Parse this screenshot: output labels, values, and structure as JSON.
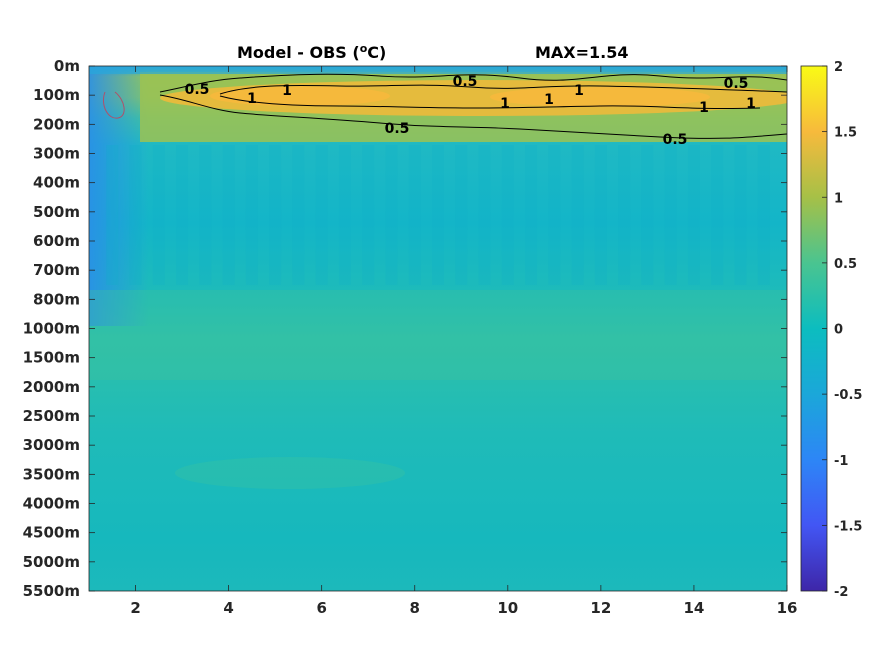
{
  "chart_data": {
    "type": "heatmap",
    "title_left": "Model - OBS (",
    "title_unit_sup": "o",
    "title_unit": "C)",
    "title_right": "MAX=1.54",
    "x_ticks": [
      2,
      4,
      6,
      8,
      10,
      12,
      14,
      16
    ],
    "xlim": [
      1,
      16
    ],
    "y_ticks": [
      "0m",
      "100m",
      "200m",
      "300m",
      "400m",
      "500m",
      "600m",
      "700m",
      "800m",
      "1000m",
      "1500m",
      "2000m",
      "2500m",
      "3000m",
      "3500m",
      "4000m",
      "4500m",
      "5000m",
      "5500m"
    ],
    "colorbar": {
      "ticks": [
        2,
        1.5,
        1,
        0.5,
        0,
        -0.5,
        -1,
        -1.5,
        -2
      ],
      "tick_labels": [
        "2",
        "1.5",
        "1",
        "0.5",
        "0",
        "-0.5",
        "-1",
        "-1.5",
        "-2"
      ],
      "range": [
        -2,
        2
      ],
      "colormap": "parula"
    },
    "contours": [
      {
        "level": 0.5,
        "labels": [
          "0.5",
          "0.5",
          "0.5",
          "0.5",
          "0.5"
        ]
      },
      {
        "level": 1,
        "labels": [
          "1",
          "1",
          "1",
          "1",
          "1",
          "1",
          "1"
        ]
      }
    ],
    "rows": [
      {
        "depth": "0m",
        "value": -0.35
      },
      {
        "depth": "100m",
        "value": 1.2
      },
      {
        "depth": "200m",
        "value": 0.65
      },
      {
        "depth": "300m",
        "value": 0.08
      },
      {
        "depth": "400m",
        "value": 0.0
      },
      {
        "depth": "500m",
        "value": -0.02
      },
      {
        "depth": "600m",
        "value": 0.0
      },
      {
        "depth": "700m",
        "value": 0.05
      },
      {
        "depth": "800m",
        "value": 0.15
      },
      {
        "depth": "1000m",
        "value": 0.22
      },
      {
        "depth": "1500m",
        "value": 0.25
      },
      {
        "depth": "2000m",
        "value": 0.2
      },
      {
        "depth": "2500m",
        "value": 0.12
      },
      {
        "depth": "3000m",
        "value": 0.1
      },
      {
        "depth": "3500m",
        "value": 0.15
      },
      {
        "depth": "4000m",
        "value": 0.08
      },
      {
        "depth": "4500m",
        "value": 0.05
      },
      {
        "depth": "5000m",
        "value": 0.05
      },
      {
        "depth": "5500m",
        "value": 0.12
      }
    ]
  }
}
